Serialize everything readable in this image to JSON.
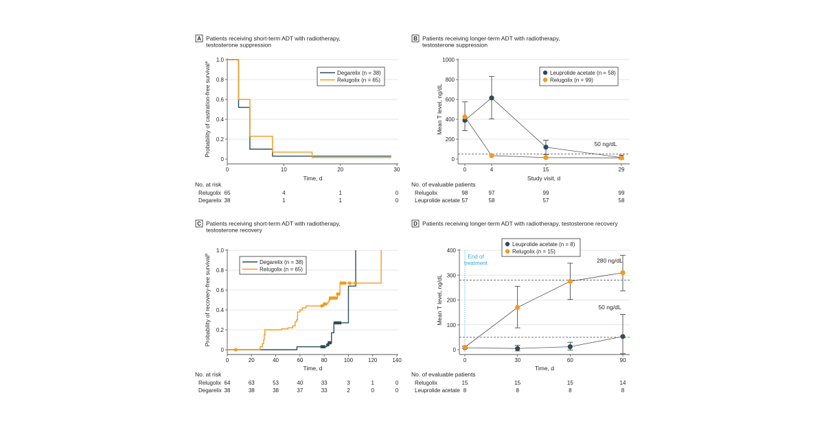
{
  "colors": {
    "navy": "#2c4c5a",
    "orange": "#f39a1e",
    "grid": "#dcdcdc",
    "axis": "#555555",
    "treatment_line": "#3aaad6"
  },
  "chart_data": [
    {
      "panel": "A",
      "type": "line",
      "subtype": "kaplan-meier step",
      "title_lines": [
        "Patients receiving short-term ADT with radiotherapy,",
        "testosterone suppression"
      ],
      "xlabel": "Time, d",
      "ylabel": "Probability of castration-free survival",
      "ylabel_sup": "a",
      "xlim": [
        0,
        30
      ],
      "ylim": [
        0,
        1
      ],
      "xticks": [
        0,
        10,
        20,
        30
      ],
      "yticks": [
        0,
        0.2,
        0.4,
        0.6,
        0.8,
        1.0
      ],
      "ytick_labels": [
        "0",
        "0.2",
        "0.4",
        "0.6",
        "0.8",
        "1.0"
      ],
      "grid": "horizontal",
      "legend_position": "top-right",
      "series": [
        {
          "name": "Degarelix (n = 38)",
          "color": "navy",
          "steps": [
            [
              0,
              1.0
            ],
            [
              2,
              0.52
            ],
            [
              4,
              0.1
            ],
            [
              8,
              0.03
            ],
            [
              29,
              0.03
            ]
          ],
          "censored": []
        },
        {
          "name": "Relugolix (n = 65)",
          "color": "orange",
          "steps": [
            [
              0,
              1.0
            ],
            [
              2,
              0.6
            ],
            [
              4,
              0.23
            ],
            [
              8,
              0.07
            ],
            [
              15,
              0.015
            ],
            [
              29,
              0.015
            ]
          ],
          "censored": []
        }
      ],
      "risk_table": {
        "title": "No. at risk",
        "times": [
          0,
          10,
          20,
          30
        ],
        "rows": [
          {
            "label": "Relugolix",
            "values": [
              "65",
              "4",
              "1",
              "0"
            ]
          },
          {
            "label": "Degarelix",
            "values": [
              "38",
              "1",
              "1",
              "0"
            ]
          }
        ]
      }
    },
    {
      "panel": "B",
      "type": "line",
      "subtype": "mean with error bars",
      "title_lines": [
        "Patients receiving longer-term ADT with radiotherapy,",
        "testosterone suppression"
      ],
      "xlabel": "Study visit, d",
      "ylabel": "Mean T level, ng/dL",
      "ylim": [
        0,
        1000
      ],
      "xticks": [
        "0",
        "4",
        "15",
        "29"
      ],
      "yticks": [
        0,
        200,
        400,
        600,
        800,
        1000
      ],
      "grid": "horizontal",
      "legend_position": "top-right",
      "reference_lines": [
        {
          "value": 50,
          "label": "50 ng/dL"
        }
      ],
      "series": [
        {
          "name": "Leuprolide acetate (n = 58)",
          "color": "navy",
          "x": [
            "0",
            "4",
            "15",
            "29"
          ],
          "y": [
            390,
            615,
            120,
            15
          ],
          "err_low": [
            285,
            405,
            45,
            0
          ],
          "err_high": [
            575,
            830,
            190,
            40
          ]
        },
        {
          "name": "Relugolix (n = 99)",
          "color": "orange",
          "x": [
            "0",
            "4",
            "15",
            "29"
          ],
          "y": [
            425,
            35,
            15,
            12
          ],
          "err_low": [
            425,
            35,
            15,
            12
          ],
          "err_high": [
            425,
            35,
            15,
            12
          ]
        }
      ],
      "risk_table": {
        "title": "No. of evaluable patients",
        "times": [
          "0",
          "4",
          "15",
          "29"
        ],
        "rows": [
          {
            "label": "Relugolix",
            "values": [
              "98",
              "97",
              "99",
              "99"
            ]
          },
          {
            "label": "Leuprolide acetate",
            "values": [
              "57",
              "58",
              "57",
              "58"
            ]
          }
        ]
      }
    },
    {
      "panel": "C",
      "type": "line",
      "subtype": "kaplan-meier step",
      "title_lines": [
        "Patients receiving short-term ADT with radiotherapy,",
        "testosterone recovery"
      ],
      "xlabel": "Time, d",
      "ylabel": "Probability of recovery-free survival",
      "ylabel_sup": "b",
      "xlim": [
        0,
        140
      ],
      "ylim": [
        0,
        1
      ],
      "xticks": [
        0,
        20,
        40,
        60,
        80,
        100,
        120,
        140
      ],
      "yticks": [
        0,
        0.2,
        0.4,
        0.6,
        0.8,
        1.0
      ],
      "ytick_labels": [
        "0",
        "0.2",
        "0.4",
        "0.6",
        "0.8",
        "1.0"
      ],
      "grid": "horizontal",
      "legend_position": "top-left",
      "series": [
        {
          "name": "Degarelix (n = 38)",
          "color": "navy",
          "steps": [
            [
              0,
              0
            ],
            [
              57.5,
              0.03
            ],
            [
              82,
              0.05
            ],
            [
              84,
              0.07
            ],
            [
              86,
              0.17
            ],
            [
              88,
              0.27
            ],
            [
              100,
              0.64
            ],
            [
              106,
              1.0
            ]
          ],
          "censored": [
            78,
            79,
            80,
            83,
            84,
            85,
            89,
            91,
            93
          ]
        },
        {
          "name": "Relugolix (n = 65)",
          "color": "orange",
          "steps": [
            [
              0,
              0
            ],
            [
              27,
              0.03
            ],
            [
              29,
              0.06
            ],
            [
              30,
              0.1
            ],
            [
              30.5,
              0.15
            ],
            [
              31,
              0.2
            ],
            [
              45,
              0.21
            ],
            [
              50,
              0.22
            ],
            [
              54,
              0.24
            ],
            [
              56,
              0.28
            ],
            [
              57,
              0.3
            ],
            [
              58,
              0.38
            ],
            [
              60,
              0.4
            ],
            [
              62,
              0.42
            ],
            [
              65,
              0.44
            ],
            [
              80,
              0.46
            ],
            [
              83,
              0.48
            ],
            [
              84,
              0.5
            ],
            [
              85,
              0.52
            ],
            [
              91,
              0.56
            ],
            [
              93,
              0.67
            ],
            [
              127,
              1.0
            ]
          ],
          "censored": [
            7,
            78,
            80,
            81,
            85,
            86,
            87,
            88,
            89,
            90,
            91,
            92,
            94,
            95,
            96,
            97,
            101,
            106
          ]
        }
      ],
      "risk_table": {
        "title": "No. at risk",
        "times": [
          0,
          20,
          40,
          60,
          80,
          100,
          120,
          140
        ],
        "rows": [
          {
            "label": "Relugolix",
            "values": [
              "64",
              "63",
              "53",
              "40",
              "33",
              "3",
              "1",
              "0"
            ]
          },
          {
            "label": "Degarelix",
            "values": [
              "38",
              "38",
              "38",
              "37",
              "33",
              "2",
              "0",
              "0"
            ]
          }
        ]
      }
    },
    {
      "panel": "D",
      "type": "line",
      "subtype": "mean with error bars",
      "title_lines": [
        "Patients receiving longer-term ADT with radiotherapy, testosterone recovery"
      ],
      "xlabel": "Time, d",
      "ylabel": "Mean T level, ng/dL",
      "xlim": [
        0,
        90
      ],
      "ylim": [
        0,
        400
      ],
      "xticks": [
        0,
        30,
        60,
        90
      ],
      "yticks": [
        0,
        100,
        200,
        300,
        400
      ],
      "grid": "horizontal",
      "legend_position": "top-center",
      "annotation": {
        "x": 0,
        "label_lines": [
          "End of",
          "treatment"
        ]
      },
      "reference_lines": [
        {
          "value": 280,
          "label": "280 ng/dL"
        },
        {
          "value": 50,
          "label": "50 ng/dL"
        }
      ],
      "series": [
        {
          "name": "Leuprolide acetate (n = 8)",
          "color": "navy",
          "x": [
            0,
            30,
            60,
            90
          ],
          "y": [
            8,
            5,
            12,
            53
          ],
          "err_low": [
            8,
            -5,
            -2,
            -35
          ],
          "err_high": [
            8,
            18,
            30,
            142
          ]
        },
        {
          "name": "Relugolix (n = 15)",
          "color": "orange",
          "x": [
            0,
            30,
            60,
            90
          ],
          "y": [
            10,
            170,
            275,
            310
          ],
          "err_low": [
            5,
            88,
            202,
            237
          ],
          "err_high": [
            15,
            255,
            348,
            380
          ]
        }
      ],
      "risk_table": {
        "title": "No. of evaluable patients",
        "times": [
          0,
          30,
          60,
          90
        ],
        "rows": [
          {
            "label": "Relugolix",
            "values": [
              "15",
              "15",
              "15",
              "14"
            ]
          },
          {
            "label": "Leuprolide acetate",
            "values": [
              "8",
              "8",
              "8",
              "8"
            ]
          }
        ]
      }
    }
  ]
}
